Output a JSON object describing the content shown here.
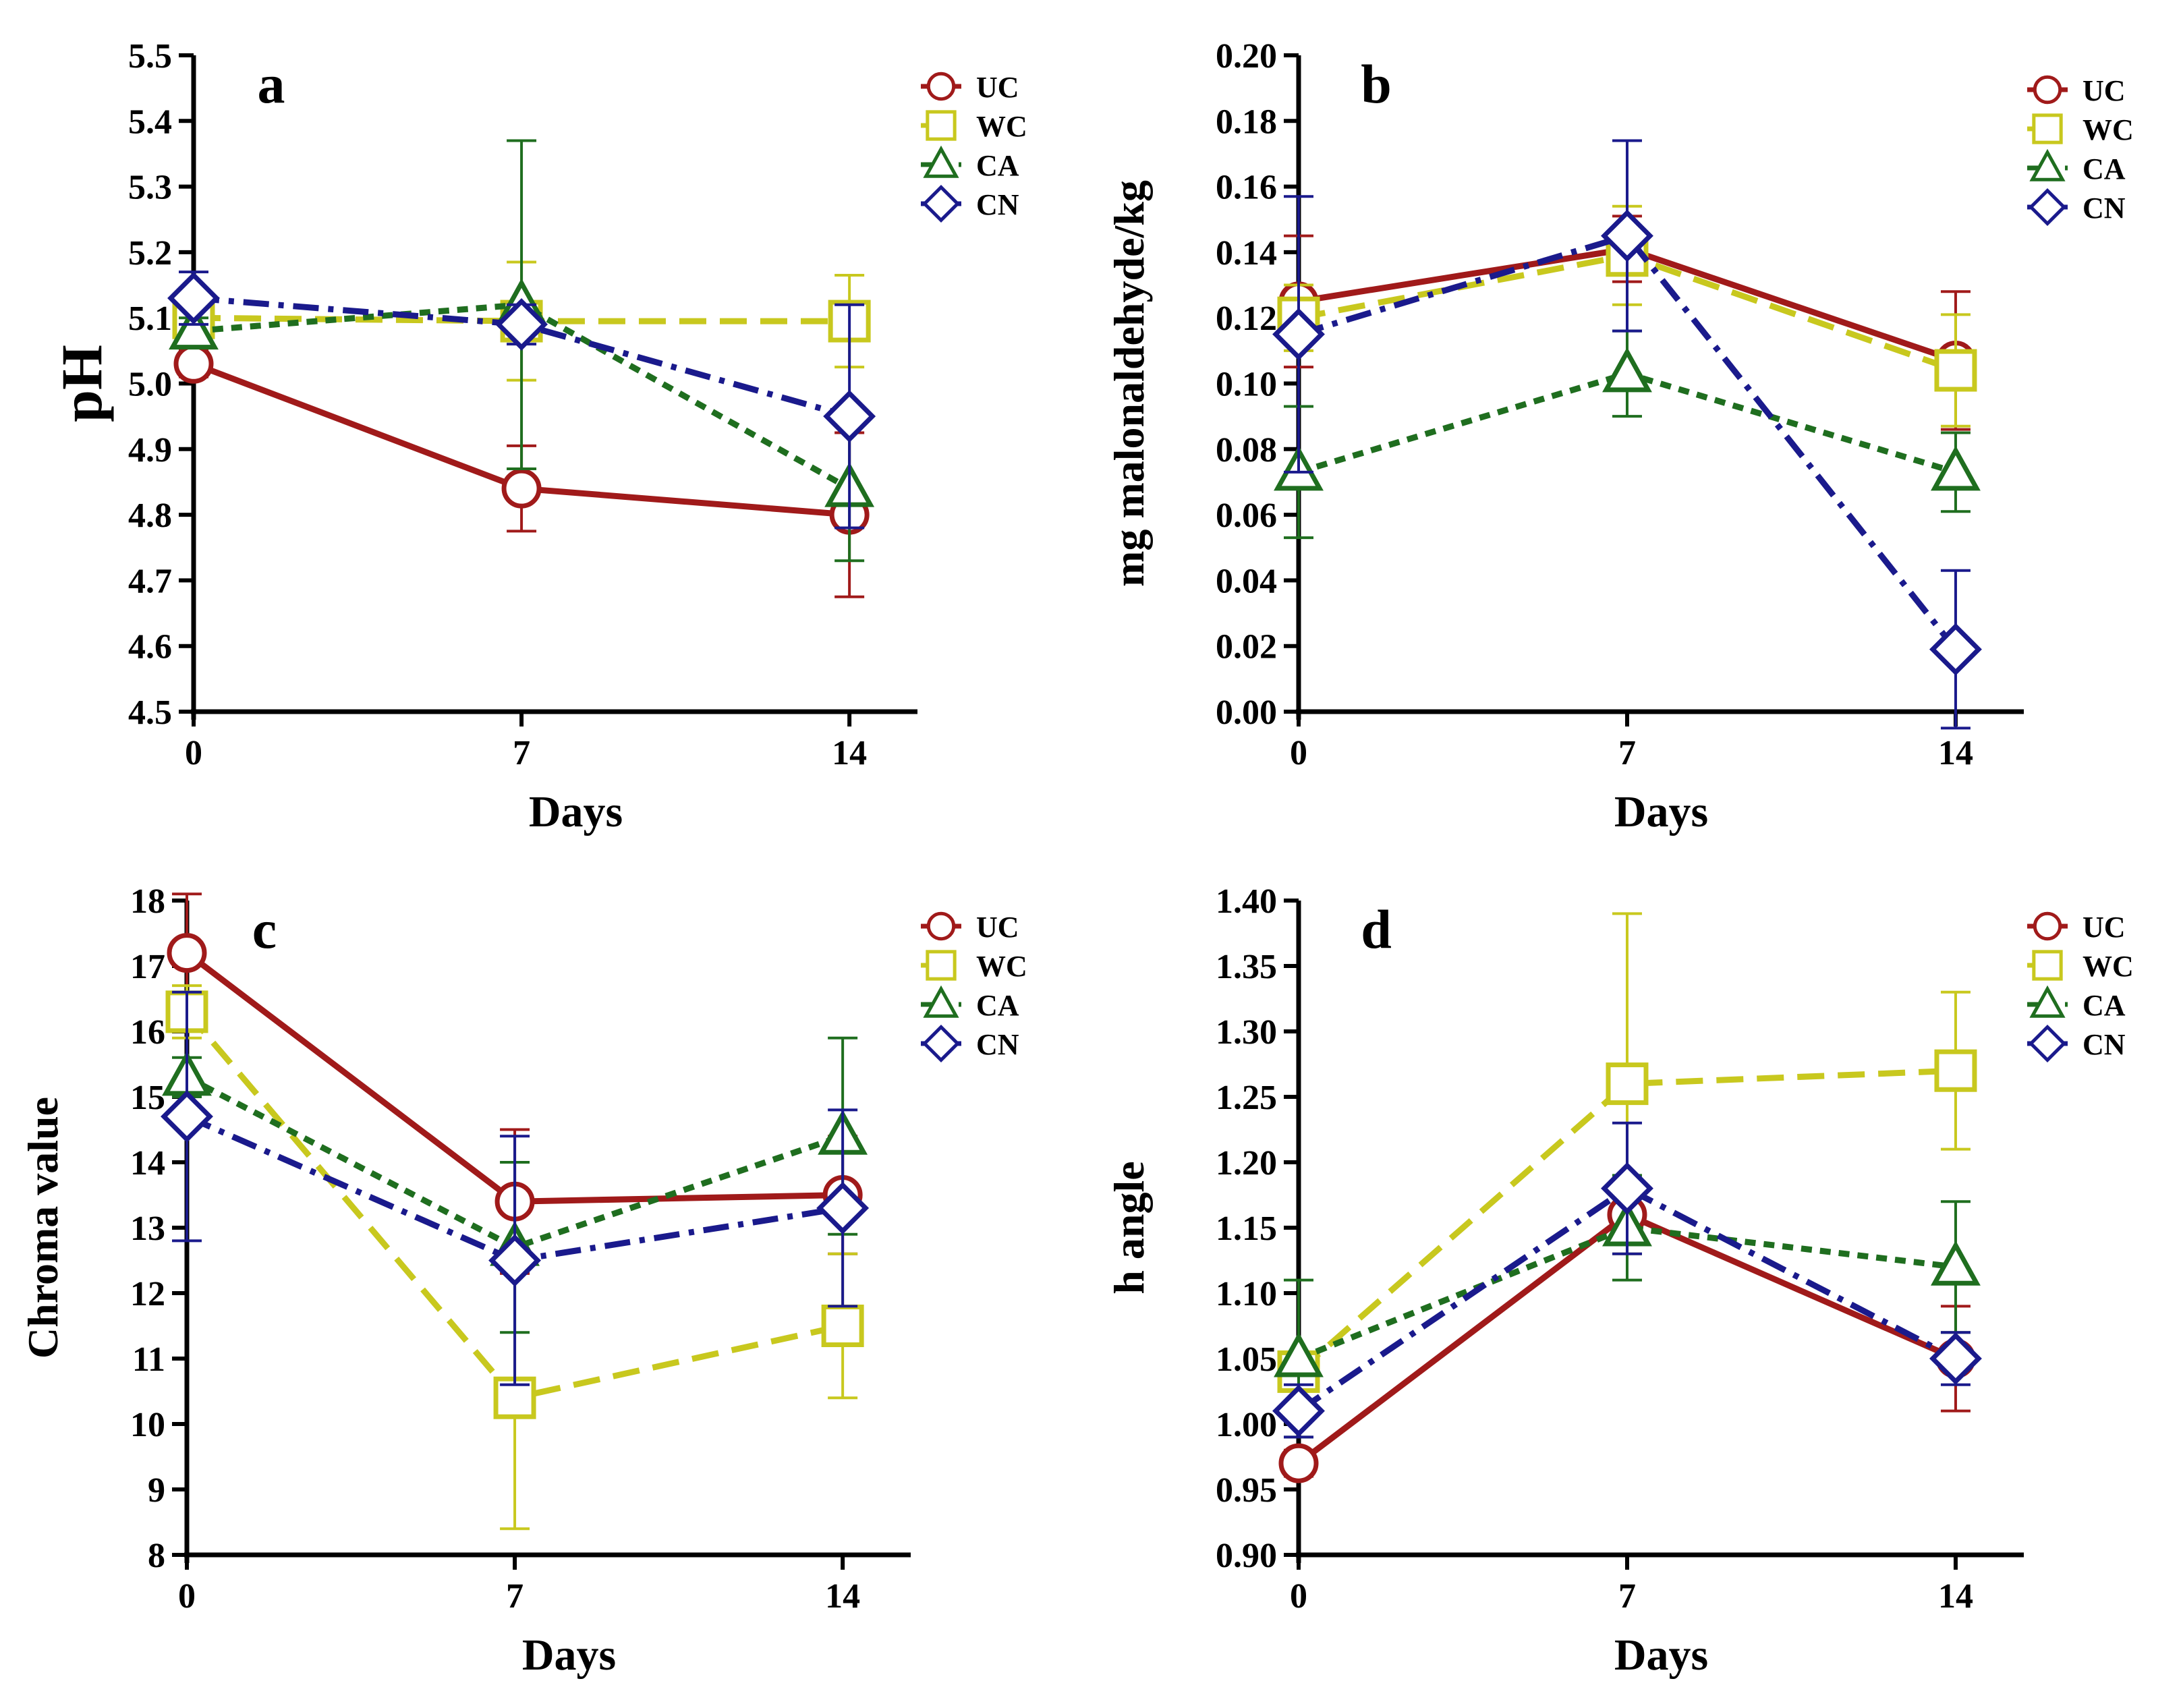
{
  "figure": {
    "colors": {
      "UC": "#a01a1a",
      "WC": "#c8c81e",
      "CA": "#1f6e1f",
      "CN": "#1a1a8c"
    },
    "legend": [
      "UC",
      "WC",
      "CA",
      "CN"
    ]
  },
  "chart_data": [
    {
      "type": "line",
      "panel_label": "a",
      "xlabel": "Days",
      "ylabel": "pH",
      "x": [
        0,
        7,
        14
      ],
      "x_tick_labels": [
        "0",
        "7",
        "14"
      ],
      "ylim": [
        4.5,
        5.5
      ],
      "y_ticks": [
        4.5,
        4.6,
        4.7,
        4.8,
        4.9,
        5.0,
        5.1,
        5.2,
        5.3,
        5.4,
        5.5
      ],
      "y_tick_labels": [
        "4.5",
        "4.6",
        "4.7",
        "4.8",
        "4.9",
        "5.0",
        "5.1",
        "5.2",
        "5.3",
        "5.4",
        "5.5"
      ],
      "series": [
        {
          "name": "UC",
          "marker": "circle",
          "dash": "solid",
          "values": [
            5.03,
            4.84,
            4.8
          ],
          "errors": [
            0.02,
            0.065,
            0.125
          ]
        },
        {
          "name": "WC",
          "marker": "square",
          "dash": "long",
          "values": [
            5.1,
            5.095,
            5.095
          ],
          "errors": [
            0.01,
            0.09,
            0.07
          ]
        },
        {
          "name": "CA",
          "marker": "triangle",
          "dash": "dotted",
          "values": [
            5.08,
            5.12,
            4.84
          ],
          "errors": [
            0.02,
            0.25,
            0.11
          ]
        },
        {
          "name": "CN",
          "marker": "diamond",
          "dash": "dashdot",
          "values": [
            5.13,
            5.09,
            4.95
          ],
          "errors": [
            0.04,
            0.03,
            0.17
          ]
        }
      ]
    },
    {
      "type": "line",
      "panel_label": "b",
      "xlabel": "Days",
      "ylabel": "mg malonaldehyde/kg",
      "x": [
        0,
        7,
        14
      ],
      "x_tick_labels": [
        "0",
        "7",
        "14"
      ],
      "ylim": [
        0.0,
        0.2
      ],
      "y_ticks": [
        0.0,
        0.02,
        0.04,
        0.06,
        0.08,
        0.1,
        0.12,
        0.14,
        0.16,
        0.18,
        0.2
      ],
      "y_tick_labels": [
        "0.00",
        "0.02",
        "0.04",
        "0.06",
        "0.08",
        "0.10",
        "0.12",
        "0.14",
        "0.16",
        "0.18",
        "0.20"
      ],
      "series": [
        {
          "name": "UC",
          "marker": "circle",
          "dash": "solid",
          "values": [
            0.125,
            0.141,
            0.107
          ],
          "errors": [
            0.02,
            0.01,
            0.021
          ]
        },
        {
          "name": "WC",
          "marker": "square",
          "dash": "long",
          "values": [
            0.12,
            0.139,
            0.104
          ],
          "errors": [
            0.01,
            0.015,
            0.017
          ]
        },
        {
          "name": "CA",
          "marker": "triangle",
          "dash": "dotted",
          "values": [
            0.073,
            0.103,
            0.073
          ],
          "errors": [
            0.02,
            0.013,
            0.012
          ]
        },
        {
          "name": "CN",
          "marker": "diamond",
          "dash": "dashdot",
          "values": [
            0.115,
            0.145,
            0.019
          ],
          "errors": [
            0.042,
            0.029,
            0.024
          ]
        }
      ]
    },
    {
      "type": "line",
      "panel_label": "c",
      "xlabel": "Days",
      "ylabel": "Chroma value",
      "x": [
        0,
        7,
        14
      ],
      "x_tick_labels": [
        "0",
        "7",
        "14"
      ],
      "ylim": [
        8,
        18
      ],
      "y_ticks": [
        8,
        9,
        10,
        11,
        12,
        13,
        14,
        15,
        16,
        17,
        18
      ],
      "y_tick_labels": [
        "8",
        "9",
        "10",
        "11",
        "12",
        "13",
        "14",
        "15",
        "16",
        "17",
        "18"
      ],
      "series": [
        {
          "name": "UC",
          "marker": "circle",
          "dash": "solid",
          "values": [
            17.2,
            13.4,
            13.5
          ],
          "errors": [
            0.9,
            1.1,
            0.9
          ]
        },
        {
          "name": "WC",
          "marker": "square",
          "dash": "long",
          "values": [
            16.3,
            10.4,
            11.5
          ],
          "errors": [
            0.4,
            2.0,
            1.1
          ]
        },
        {
          "name": "CA",
          "marker": "triangle",
          "dash": "dotted",
          "values": [
            15.3,
            12.7,
            14.4
          ],
          "errors": [
            0.3,
            1.3,
            1.5
          ]
        },
        {
          "name": "CN",
          "marker": "diamond",
          "dash": "dashdot",
          "values": [
            14.7,
            12.5,
            13.3
          ],
          "errors": [
            1.9,
            1.9,
            1.5
          ]
        }
      ]
    },
    {
      "type": "line",
      "panel_label": "d",
      "xlabel": "Days",
      "ylabel": "h angle",
      "x": [
        0,
        7,
        14
      ],
      "x_tick_labels": [
        "0",
        "7",
        "14"
      ],
      "ylim": [
        0.9,
        1.4
      ],
      "y_ticks": [
        0.9,
        0.95,
        1.0,
        1.05,
        1.1,
        1.15,
        1.2,
        1.25,
        1.3,
        1.35,
        1.4
      ],
      "y_tick_labels": [
        "0.90",
        "0.95",
        "1.00",
        "1.05",
        "1.10",
        "1.15",
        "1.20",
        "1.25",
        "1.30",
        "1.35",
        "1.40"
      ],
      "series": [
        {
          "name": "UC",
          "marker": "circle",
          "dash": "solid",
          "values": [
            0.97,
            1.16,
            1.05
          ],
          "errors": [
            0.01,
            0.02,
            0.04
          ]
        },
        {
          "name": "WC",
          "marker": "square",
          "dash": "long",
          "values": [
            1.04,
            1.26,
            1.27
          ],
          "errors": [
            0.01,
            0.13,
            0.06
          ]
        },
        {
          "name": "CA",
          "marker": "triangle",
          "dash": "dotted",
          "values": [
            1.05,
            1.15,
            1.12
          ],
          "errors": [
            0.06,
            0.04,
            0.05
          ]
        },
        {
          "name": "CN",
          "marker": "diamond",
          "dash": "dashdot",
          "values": [
            1.01,
            1.18,
            1.05
          ],
          "errors": [
            0.02,
            0.05,
            0.02
          ]
        }
      ]
    }
  ]
}
